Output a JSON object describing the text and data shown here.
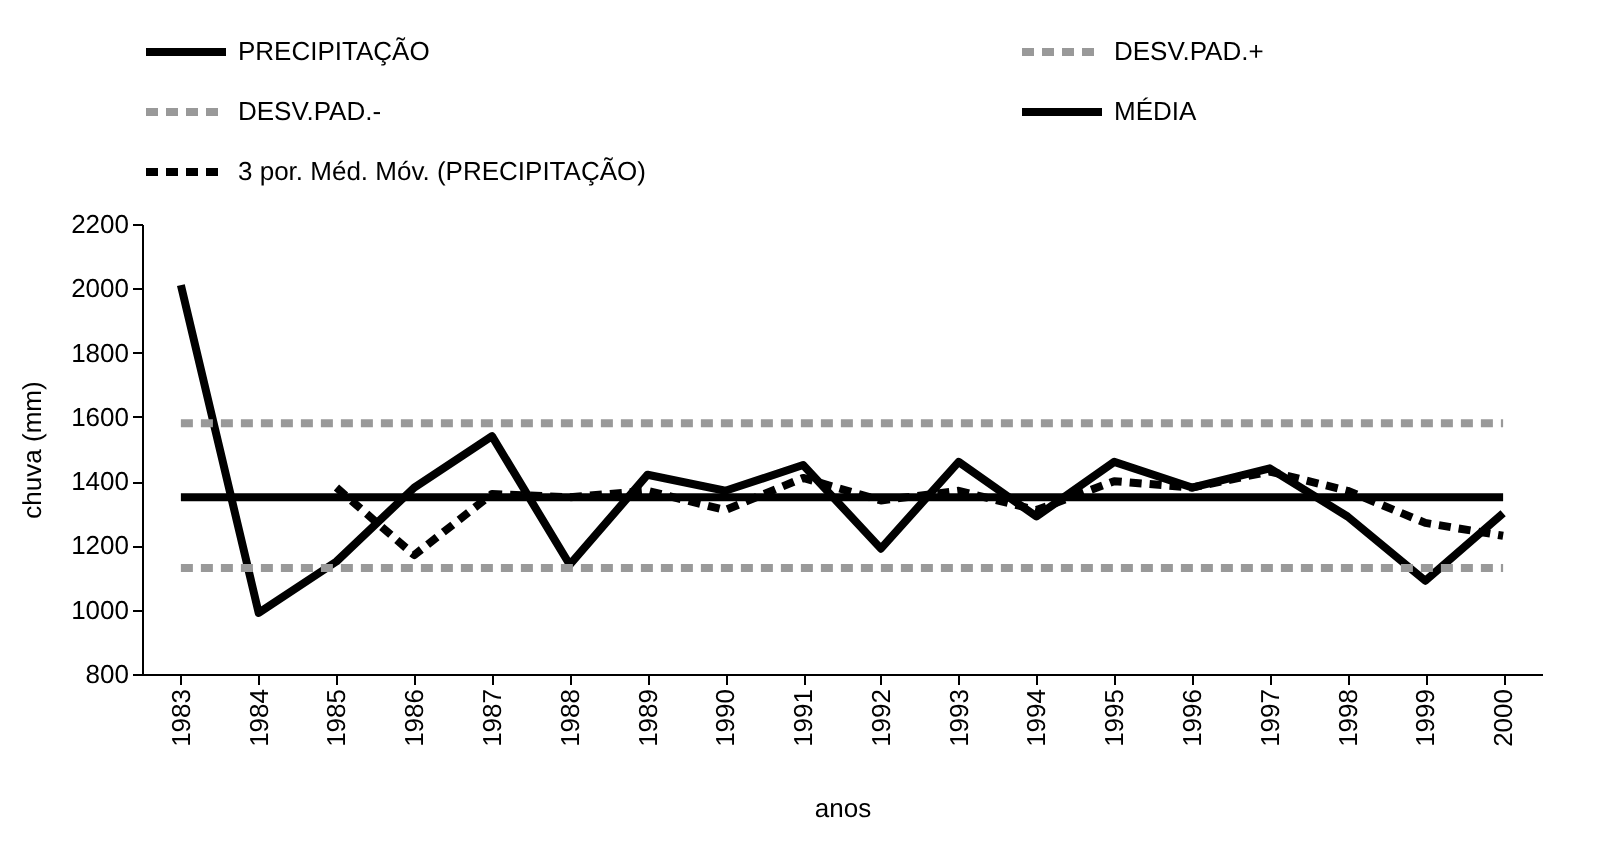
{
  "chart_data": {
    "type": "line",
    "xlabel": "anos",
    "ylabel": "chuva (mm)",
    "categories": [
      "1983",
      "1984",
      "1985",
      "1986",
      "1987",
      "1988",
      "1989",
      "1990",
      "1991",
      "1992",
      "1993",
      "1994",
      "1995",
      "1996",
      "1997",
      "1998",
      "1999",
      "2000"
    ],
    "series": [
      {
        "name": "PRECIPITAÇÃO",
        "color": "#000000",
        "line_style": "solid",
        "values": [
          2010,
          990,
          1150,
          1380,
          1540,
          1140,
          1420,
          1370,
          1450,
          1190,
          1460,
          1290,
          1460,
          1380,
          1440,
          1290,
          1090,
          1300
        ]
      },
      {
        "name": "DESV.PAD.+",
        "color": "#999999",
        "line_style": "dashed",
        "values": [
          1580,
          1580,
          1580,
          1580,
          1580,
          1580,
          1580,
          1580,
          1580,
          1580,
          1580,
          1580,
          1580,
          1580,
          1580,
          1580,
          1580,
          1580
        ]
      },
      {
        "name": "DESV.PAD.-",
        "color": "#999999",
        "line_style": "dashed",
        "values": [
          1130,
          1130,
          1130,
          1130,
          1130,
          1130,
          1130,
          1130,
          1130,
          1130,
          1130,
          1130,
          1130,
          1130,
          1130,
          1130,
          1130,
          1130
        ]
      },
      {
        "name": "MÉDIA",
        "color": "#000000",
        "line_style": "solid",
        "values": [
          1350,
          1350,
          1350,
          1350,
          1350,
          1350,
          1350,
          1350,
          1350,
          1350,
          1350,
          1350,
          1350,
          1350,
          1350,
          1350,
          1350,
          1350
        ]
      },
      {
        "name": "3 por. Méd. Móv. (PRECIPITAÇÃO)",
        "color": "#000000",
        "line_style": "dashed",
        "values": [
          null,
          null,
          1380,
          1170,
          1360,
          1350,
          1370,
          1310,
          1410,
          1340,
          1370,
          1310,
          1400,
          1380,
          1430,
          1370,
          1270,
          1230
        ]
      }
    ],
    "ylim": [
      800,
      2200
    ],
    "yticks": [
      800,
      1000,
      1200,
      1400,
      1600,
      1800,
      2000,
      2200
    ],
    "grid": false,
    "legend": "top left"
  }
}
